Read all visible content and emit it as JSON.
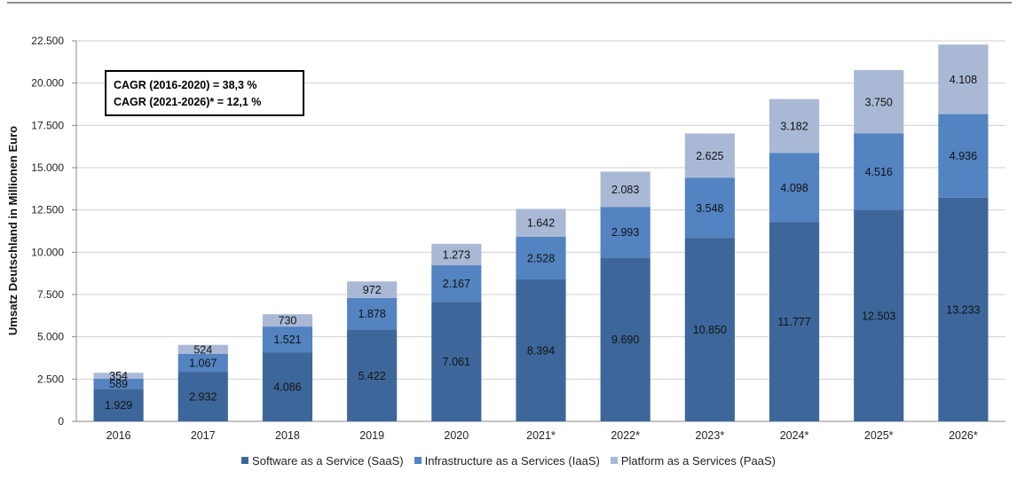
{
  "chart_data": {
    "type": "bar",
    "stacked": true,
    "ylabel": "Umsatz Deutschland in Millionen Euro",
    "ylim": [
      0,
      22500
    ],
    "yticks": [
      "0",
      "2.500",
      "5.000",
      "7.500",
      "10.000",
      "12.500",
      "15.000",
      "17.500",
      "20.000",
      "22.500"
    ],
    "categories": [
      "2016",
      "2017",
      "2018",
      "2019",
      "2020",
      "2021*",
      "2022*",
      "2023*",
      "2024*",
      "2025*",
      "2026*"
    ],
    "series": [
      {
        "name": "Software as a Service (SaaS)",
        "color": "#3d679a",
        "values": [
          1929,
          2932,
          4086,
          5422,
          7061,
          8394,
          9690,
          10850,
          11777,
          12503,
          13233
        ],
        "labels": [
          "1.929",
          "2.932",
          "4.086",
          "5.422",
          "7.061",
          "8.394",
          "9.690",
          "10.850",
          "11.777",
          "12.503",
          "13.233"
        ]
      },
      {
        "name": "Infrastructure as a Services (IaaS)",
        "color": "#5383c0",
        "values": [
          589,
          1067,
          1521,
          1878,
          2167,
          2528,
          2993,
          3548,
          4098,
          4516,
          4936
        ],
        "labels": [
          "589",
          "1.067",
          "1.521",
          "1.878",
          "2.167",
          "2.528",
          "2.993",
          "3.548",
          "4.098",
          "4.516",
          "4.936"
        ]
      },
      {
        "name": "Platform as a Services (PaaS)",
        "color": "#a9b9d5",
        "values": [
          354,
          524,
          730,
          972,
          1273,
          1642,
          2083,
          2625,
          3182,
          3750,
          4108
        ],
        "labels": [
          "354",
          "524",
          "730",
          "972",
          "1.273",
          "1.642",
          "2.083",
          "2.625",
          "3.182",
          "3.750",
          "4.108"
        ]
      }
    ],
    "annotation": [
      "CAGR (2016-2020)  = 38,3 %",
      "CAGR (2021-2026)* = 12,1 %"
    ],
    "grid": true,
    "legend_position": "bottom"
  }
}
